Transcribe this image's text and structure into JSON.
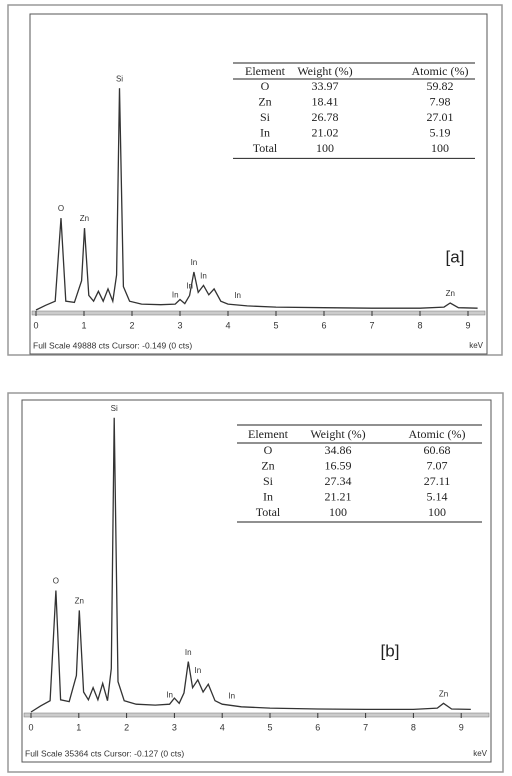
{
  "chart_data": [
    {
      "type": "line",
      "label": "[a]",
      "color": "#333333",
      "unit": "keV",
      "footer": "Full Scale 49888 cts Cursor: -0.149 (0 cts)",
      "xlim": [
        -0.1,
        9.4
      ],
      "ylim": [
        0,
        49888
      ],
      "xticks": [
        0,
        1,
        2,
        3,
        4,
        5,
        6,
        7,
        8,
        9
      ],
      "x": [
        0,
        0.2,
        0.4,
        0.52,
        0.62,
        0.8,
        0.95,
        1.01,
        1.1,
        1.2,
        1.3,
        1.4,
        1.5,
        1.6,
        1.68,
        1.74,
        1.82,
        1.95,
        2.2,
        2.6,
        2.9,
        3.0,
        3.1,
        3.2,
        3.29,
        3.38,
        3.49,
        3.6,
        3.71,
        3.85,
        4.0,
        4.4,
        5,
        6,
        7,
        8,
        8.5,
        8.63,
        8.8,
        9.2
      ],
      "values": [
        0,
        800,
        1500,
        15700,
        1500,
        1300,
        5000,
        14000,
        2500,
        1500,
        3200,
        1500,
        3600,
        1500,
        6000,
        37900,
        4000,
        1500,
        1000,
        900,
        1000,
        1800,
        1100,
        2500,
        6500,
        3000,
        4200,
        2600,
        3600,
        1500,
        1000,
        700,
        500,
        400,
        300,
        300,
        500,
        1200,
        400,
        300
      ],
      "annotations": [
        {
          "text": "O",
          "x": 0.52
        },
        {
          "text": "Zn",
          "x": 1.01
        },
        {
          "text": "Si",
          "x": 1.74
        },
        {
          "text": "In",
          "x": 2.9
        },
        {
          "text": "In",
          "x": 3.2
        },
        {
          "text": "In",
          "x": 3.29
        },
        {
          "text": "In",
          "x": 3.49
        },
        {
          "text": "In",
          "x": 4.2
        },
        {
          "text": "Zn",
          "x": 8.63
        }
      ],
      "table": {
        "header": [
          "Element",
          "Weight (%)",
          "Atomic (%)"
        ],
        "rows": [
          [
            "O",
            "33.97",
            "59.82"
          ],
          [
            "Zn",
            "18.41",
            "7.98"
          ],
          [
            "Si",
            "26.78",
            "27.01"
          ],
          [
            "In",
            "21.02",
            "5.19"
          ],
          [
            "Total",
            "100",
            "100"
          ]
        ]
      }
    },
    {
      "type": "line",
      "label": "[b]",
      "color": "#333333",
      "unit": "keV",
      "footer": "Full Scale 35364 cts Cursor: -0.127 (0 cts)",
      "xlim": [
        -0.1,
        9.4
      ],
      "ylim": [
        0,
        35364
      ],
      "xticks": [
        0,
        1,
        2,
        3,
        4,
        5,
        6,
        7,
        8,
        9
      ],
      "x": [
        0,
        0.2,
        0.4,
        0.52,
        0.62,
        0.8,
        0.95,
        1.01,
        1.1,
        1.2,
        1.3,
        1.4,
        1.5,
        1.6,
        1.68,
        1.74,
        1.82,
        1.95,
        2.2,
        2.6,
        2.9,
        3.0,
        3.1,
        3.2,
        3.29,
        3.38,
        3.49,
        3.6,
        3.71,
        3.85,
        4.0,
        4.4,
        5,
        6,
        7,
        8,
        8.5,
        8.63,
        8.8,
        9.2
      ],
      "values": [
        0,
        700,
        1300,
        14000,
        1400,
        1200,
        4200,
        11700,
        2300,
        1400,
        2800,
        1400,
        3300,
        1300,
        5000,
        33900,
        3500,
        1300,
        900,
        800,
        900,
        1600,
        1000,
        2200,
        5800,
        2800,
        3700,
        2300,
        3200,
        1300,
        900,
        600,
        450,
        350,
        300,
        300,
        450,
        1000,
        350,
        300
      ],
      "annotations": [
        {
          "text": "O",
          "x": 0.52
        },
        {
          "text": "Zn",
          "x": 1.01
        },
        {
          "text": "Si",
          "x": 1.74
        },
        {
          "text": "In",
          "x": 2.9
        },
        {
          "text": "In",
          "x": 3.29
        },
        {
          "text": "In",
          "x": 3.49
        },
        {
          "text": "In",
          "x": 4.2
        },
        {
          "text": "Zn",
          "x": 8.63
        }
      ],
      "table": {
        "header": [
          "Element",
          "Weight (%)",
          "Atomic (%)"
        ],
        "rows": [
          [
            "O",
            "34.86",
            "60.68"
          ],
          [
            "Zn",
            "16.59",
            "7.07"
          ],
          [
            "Si",
            "27.34",
            "27.11"
          ],
          [
            "In",
            "21.21",
            "5.14"
          ],
          [
            "Total",
            "100",
            "100"
          ]
        ]
      }
    }
  ]
}
